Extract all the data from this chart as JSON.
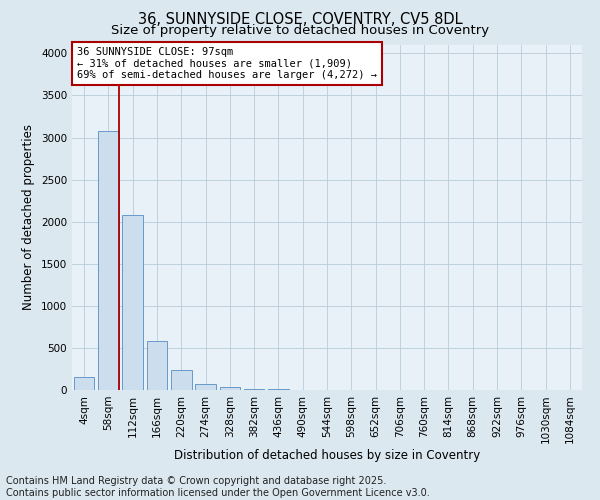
{
  "title_line1": "36, SUNNYSIDE CLOSE, COVENTRY, CV5 8DL",
  "title_line2": "Size of property relative to detached houses in Coventry",
  "xlabel": "Distribution of detached houses by size in Coventry",
  "ylabel": "Number of detached properties",
  "bar_color": "#ccdded",
  "bar_edge_color": "#6699cc",
  "vline_color": "#aa0000",
  "annotation_text": "36 SUNNYSIDE CLOSE: 97sqm\n← 31% of detached houses are smaller (1,909)\n69% of semi-detached houses are larger (4,272) →",
  "annotation_box_color": "#aa0000",
  "categories": [
    "4sqm",
    "58sqm",
    "112sqm",
    "166sqm",
    "220sqm",
    "274sqm",
    "328sqm",
    "382sqm",
    "436sqm",
    "490sqm",
    "544sqm",
    "598sqm",
    "652sqm",
    "706sqm",
    "760sqm",
    "814sqm",
    "868sqm",
    "922sqm",
    "976sqm",
    "1030sqm",
    "1084sqm"
  ],
  "values": [
    150,
    3080,
    2080,
    580,
    235,
    75,
    40,
    15,
    8,
    0,
    0,
    0,
    0,
    0,
    0,
    0,
    0,
    0,
    0,
    0,
    0
  ],
  "ylim": [
    0,
    4100
  ],
  "yticks": [
    0,
    500,
    1000,
    1500,
    2000,
    2500,
    3000,
    3500,
    4000
  ],
  "background_color": "#dce8f0",
  "plot_bg_color": "#e8f0f8",
  "grid_color": "#b8ccd8",
  "footer_line1": "Contains HM Land Registry data © Crown copyright and database right 2025.",
  "footer_line2": "Contains public sector information licensed under the Open Government Licence v3.0.",
  "title_fontsize": 10.5,
  "subtitle_fontsize": 9.5,
  "axis_label_fontsize": 8.5,
  "tick_fontsize": 7.5,
  "footer_fontsize": 7,
  "annotation_fontsize": 7.5
}
